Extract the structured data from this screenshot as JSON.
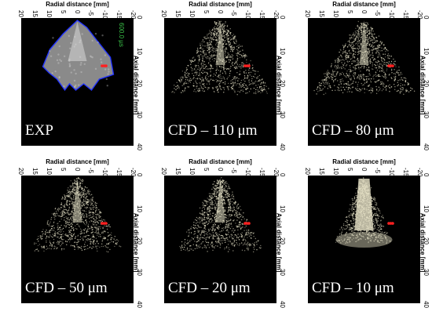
{
  "chart_data": [
    {
      "type": "image",
      "panel_label": "EXP",
      "timestamp": "600.0 µs",
      "marker_color": "#ff2020",
      "source": "exp"
    },
    {
      "type": "image",
      "panel_label": "CFD – 110 μm",
      "marker_color": "#ff2020",
      "source": "cfd",
      "particle_size_um": 110
    },
    {
      "type": "image",
      "panel_label": "CFD – 80 μm",
      "marker_color": "#ff2020",
      "source": "cfd",
      "particle_size_um": 80
    },
    {
      "type": "image",
      "panel_label": "CFD – 50 μm",
      "marker_color": "#ff2020",
      "source": "cfd",
      "particle_size_um": 50
    },
    {
      "type": "image",
      "panel_label": "CFD – 20 μm",
      "marker_color": "#ff2020",
      "source": "cfd",
      "particle_size_um": 20
    },
    {
      "type": "image",
      "panel_label": "CFD – 10 μm",
      "marker_color": "#ff2020",
      "source": "cfd",
      "particle_size_um": 10
    }
  ],
  "axes": {
    "xlabel": "Radial distance [mm]",
    "ylabel": "Axial distance [mm]",
    "xticks": [
      "20",
      "15",
      "10",
      "5",
      "0",
      "-5",
      "-10",
      "-15",
      "-20"
    ],
    "yticks": [
      "0",
      "10",
      "20",
      "30",
      "40"
    ],
    "xlim": [
      20,
      -20
    ],
    "ylim": [
      0,
      40
    ]
  },
  "colors": {
    "background": "#000000",
    "spray": "#e8e4c8",
    "exp_outline": "#2233ff",
    "timestamp": "#3cc84a"
  }
}
